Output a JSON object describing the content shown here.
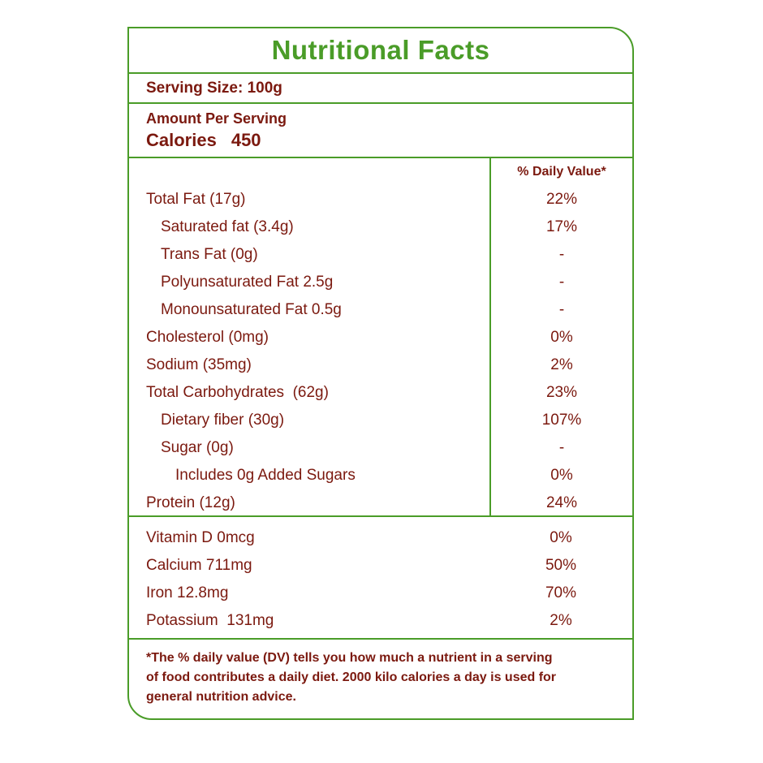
{
  "colors": {
    "green": "#4a9c28",
    "maroon": "#7b190f"
  },
  "label": {
    "title": "Nutritional Facts",
    "serving_size": "Serving Size: 100g",
    "amount_per_serving": "Amount Per Serving",
    "calories_label": "Calories",
    "calories_value": "450",
    "daily_value_header": "% Daily Value*",
    "nutrients": [
      {
        "name": "Total Fat (17g)",
        "value": "22%",
        "indent": 0
      },
      {
        "name": "Saturated fat (3.4g)",
        "value": "17%",
        "indent": 1
      },
      {
        "name": "Trans Fat (0g)",
        "value": "-",
        "indent": 1
      },
      {
        "name": "Polyunsaturated Fat 2.5g",
        "value": "-",
        "indent": 1
      },
      {
        "name": "Monounsaturated Fat 0.5g",
        "value": "-",
        "indent": 1
      },
      {
        "name": "Cholesterol (0mg)",
        "value": "0%",
        "indent": 0
      },
      {
        "name": "Sodium (35mg)",
        "value": "2%",
        "indent": 0
      },
      {
        "name": "Total Carbohydrates  (62g)",
        "value": "23%",
        "indent": 0
      },
      {
        "name": "Dietary fiber (30g)",
        "value": "107%",
        "indent": 1
      },
      {
        "name": "Sugar (0g)",
        "value": "-",
        "indent": 1
      },
      {
        "name": "Includes 0g Added Sugars",
        "value": "0%",
        "indent": 2
      },
      {
        "name": "Protein (12g)",
        "value": "24%",
        "indent": 0
      }
    ],
    "vitamins": [
      {
        "name": "Vitamin D 0mcg",
        "value": "0%"
      },
      {
        "name": "Calcium 711mg",
        "value": "50%"
      },
      {
        "name": "Iron 12.8mg",
        "value": "70%"
      },
      {
        "name": "Potassium  131mg",
        "value": "2%"
      }
    ],
    "footnote": "*The % daily value (DV) tells you how much a nutrient in a serving of food contributes a daily diet. 2000 kilo calories a day is used for general nutrition advice."
  }
}
